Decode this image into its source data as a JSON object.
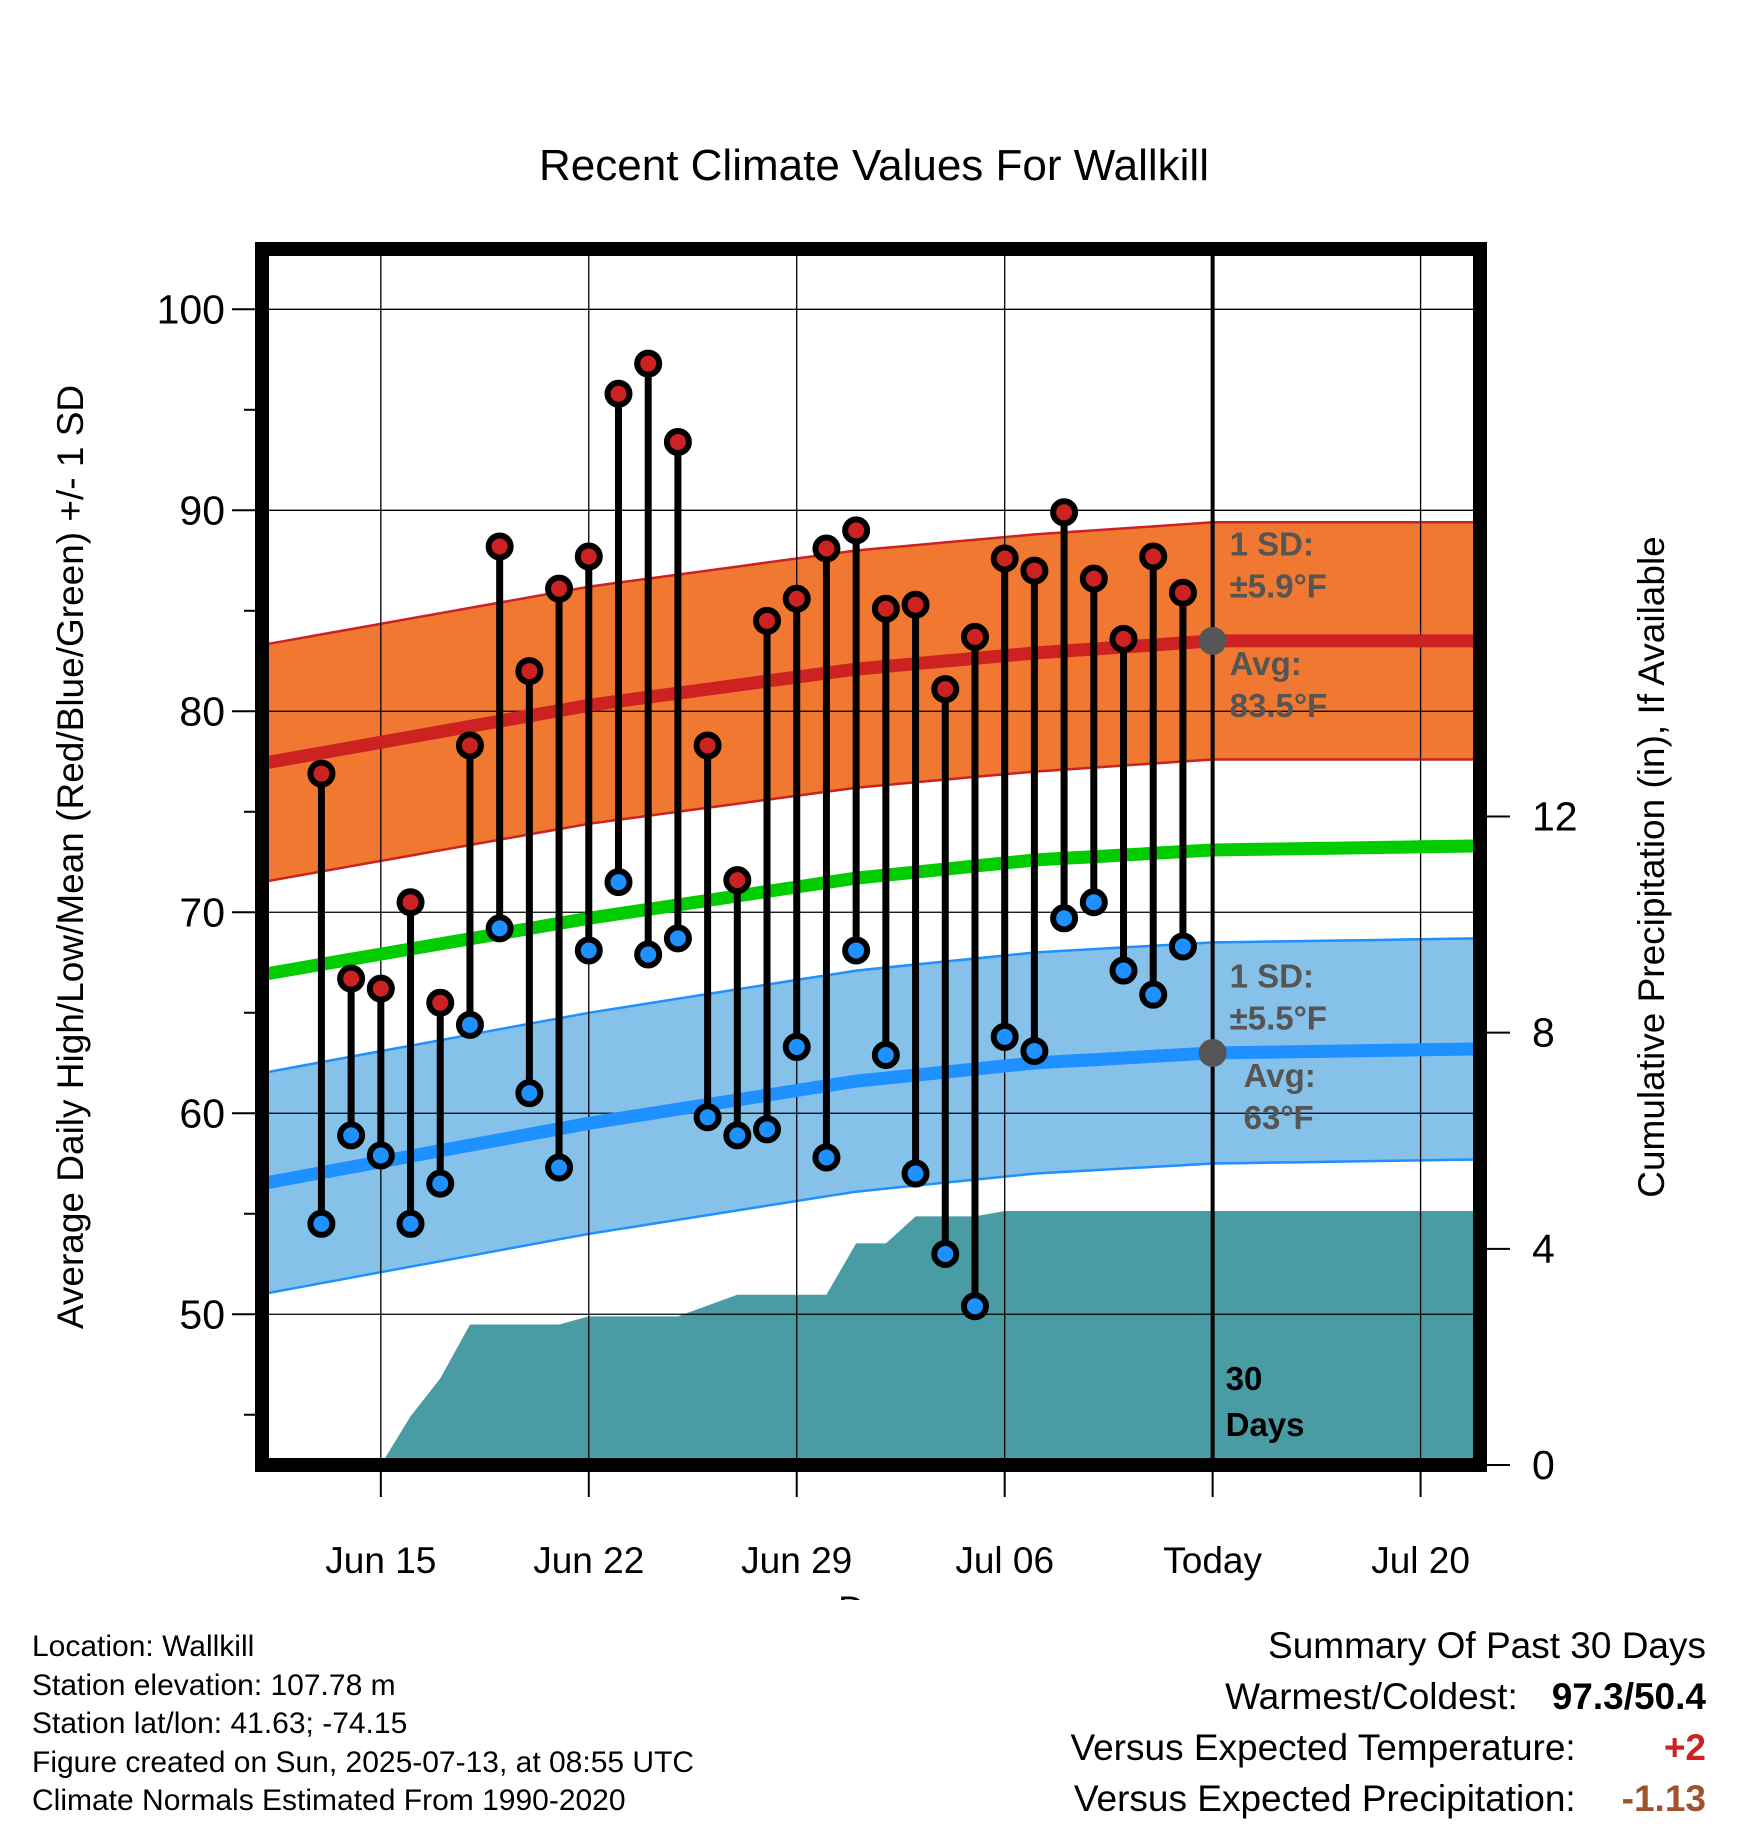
{
  "chart_data": {
    "type": "line",
    "title": "Recent Climate Values For Wallkill",
    "xlabel": "Day",
    "ylabel": "Average Daily High/Low/Mean (Red/Blue/Green) +/- 1 SD",
    "y2label": "Cumulative Precipitation (in), If Available",
    "ylim": [
      42.5,
      103
    ],
    "y_ticks": [
      50,
      60,
      70,
      80,
      90,
      100
    ],
    "y2lim": [
      0,
      22.5
    ],
    "y2_ticks": [
      0,
      4,
      8,
      12
    ],
    "xlim": [
      "2025-06-11",
      "2025-07-22"
    ],
    "x_ticks": [
      {
        "date": "2025-06-15",
        "label": "Jun 15"
      },
      {
        "date": "2025-06-22",
        "label": "Jun 22"
      },
      {
        "date": "2025-06-29",
        "label": "Jun 29"
      },
      {
        "date": "2025-07-06",
        "label": "Jul 06"
      },
      {
        "date": "2025-07-13",
        "label": "Today"
      },
      {
        "date": "2025-07-20",
        "label": "Jul 20"
      }
    ],
    "today": "2025-07-13",
    "grid": true,
    "observed": {
      "dates": [
        "2025-06-13",
        "2025-06-14",
        "2025-06-15",
        "2025-06-16",
        "2025-06-17",
        "2025-06-18",
        "2025-06-19",
        "2025-06-20",
        "2025-06-21",
        "2025-06-22",
        "2025-06-23",
        "2025-06-24",
        "2025-06-25",
        "2025-06-26",
        "2025-06-27",
        "2025-06-28",
        "2025-06-29",
        "2025-06-30",
        "2025-07-01",
        "2025-07-02",
        "2025-07-03",
        "2025-07-04",
        "2025-07-05",
        "2025-07-06",
        "2025-07-07",
        "2025-07-08",
        "2025-07-09",
        "2025-07-10",
        "2025-07-11",
        "2025-07-12"
      ],
      "high": [
        76.9,
        66.7,
        66.2,
        70.5,
        65.5,
        78.3,
        88.2,
        82.0,
        86.1,
        87.7,
        95.8,
        97.3,
        93.4,
        78.3,
        71.6,
        84.5,
        85.6,
        88.1,
        89.0,
        85.1,
        85.3,
        81.1,
        83.7,
        87.6,
        87.0,
        89.9,
        86.6,
        83.6,
        87.7,
        85.9
      ],
      "low": [
        54.5,
        58.9,
        57.9,
        54.5,
        56.5,
        64.4,
        69.2,
        61.0,
        57.3,
        68.1,
        71.5,
        67.9,
        68.7,
        59.8,
        58.9,
        59.2,
        63.3,
        57.8,
        68.1,
        62.9,
        57.0,
        53.0,
        50.4,
        63.8,
        63.1,
        69.7,
        70.5,
        67.1,
        65.9,
        68.3
      ]
    },
    "normals": {
      "dates": [
        "2025-06-11",
        "2025-06-22",
        "2025-07-01",
        "2025-07-07",
        "2025-07-13",
        "2025-07-22"
      ],
      "avg_high": [
        77.4,
        80.3,
        82.1,
        82.9,
        83.5,
        83.5
      ],
      "avg_low": [
        56.5,
        59.5,
        61.6,
        62.5,
        63.0,
        63.2
      ],
      "avg_mean": [
        66.9,
        69.7,
        71.7,
        72.6,
        73.1,
        73.3
      ],
      "sd_high": 5.9,
      "sd_low": 5.5
    },
    "precipitation": {
      "dates": [
        "2025-06-11",
        "2025-06-15",
        "2025-06-16",
        "2025-06-17",
        "2025-06-18",
        "2025-06-21",
        "2025-06-22",
        "2025-06-25",
        "2025-06-27",
        "2025-06-30",
        "2025-07-01",
        "2025-07-02",
        "2025-07-03",
        "2025-07-05",
        "2025-07-06",
        "2025-07-13",
        "2025-07-22"
      ],
      "cumulative": [
        0,
        0,
        0.9,
        1.6,
        2.6,
        2.6,
        2.75,
        2.75,
        3.15,
        3.15,
        4.1,
        4.1,
        4.6,
        4.6,
        4.7,
        4.7,
        4.7
      ]
    },
    "annotations": {
      "high_sd": "1 SD:",
      "high_sd_value": "±5.9°F",
      "high_avg": "Avg:",
      "high_avg_value": "83.5°F",
      "low_sd": "1 SD:",
      "low_sd_value": "±5.5°F",
      "low_avg": "Avg:",
      "low_avg_value": "63°F",
      "period": "30",
      "period_unit": "Days"
    },
    "colors": {
      "high": "#cc2222",
      "high_band": "#f07830",
      "low": "#1e90ff",
      "low_band": "#85c1e9",
      "mean": "#00cc00",
      "precip": "#4a9ca4",
      "annotation": "#555555",
      "today_marker": "#555555"
    }
  },
  "footer": {
    "location": "Location: Wallkill",
    "elevation": "Station elevation: 107.78 m",
    "latlon": "Station lat/lon: 41.63; -74.15",
    "created": "Figure created on Sun, 2025-07-13, at 08:55 UTC",
    "normals": "Climate Normals Estimated From 1990-2020"
  },
  "summary": {
    "heading": "Summary Of Past 30 Days",
    "warmest_label": "Warmest/Coldest:",
    "warmest_value": "97.3/50.4",
    "temp_label": "Versus Expected Temperature:",
    "temp_value": "+2",
    "precip_label": "Versus Expected Precipitation:",
    "precip_value": "-1.13"
  }
}
